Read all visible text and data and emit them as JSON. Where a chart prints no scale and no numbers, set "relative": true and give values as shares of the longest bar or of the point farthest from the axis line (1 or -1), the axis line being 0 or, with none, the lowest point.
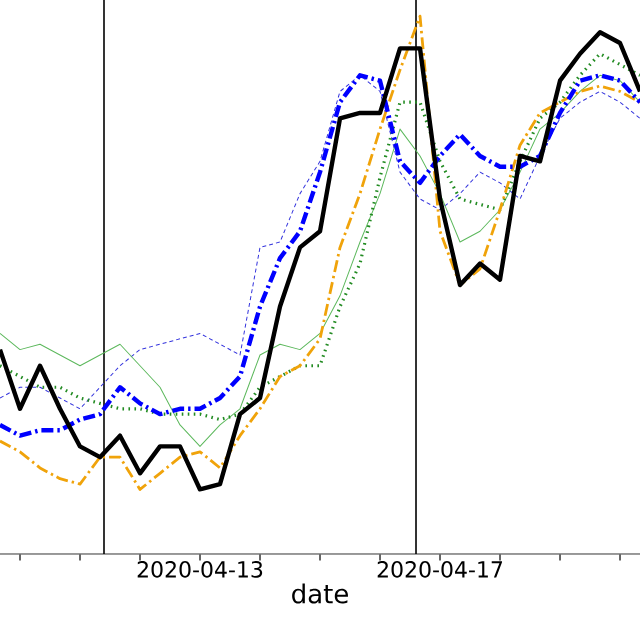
{
  "chart_data": {
    "type": "line",
    "relative": true,
    "xlabel": "date",
    "x": [
      "2020-04-09T16:00",
      "2020-04-10T00:00",
      "2020-04-10T08:00",
      "2020-04-10T16:00",
      "2020-04-11T00:00",
      "2020-04-11T08:00",
      "2020-04-11T16:00",
      "2020-04-12T00:00",
      "2020-04-12T08:00",
      "2020-04-12T16:00",
      "2020-04-13T00:00",
      "2020-04-13T08:00",
      "2020-04-13T16:00",
      "2020-04-14T00:00",
      "2020-04-14T08:00",
      "2020-04-14T16:00",
      "2020-04-15T00:00",
      "2020-04-15T08:00",
      "2020-04-15T16:00",
      "2020-04-16T00:00",
      "2020-04-16T08:00",
      "2020-04-16T16:00",
      "2020-04-17T00:00",
      "2020-04-17T08:00",
      "2020-04-17T16:00",
      "2020-04-18T00:00",
      "2020-04-18T08:00",
      "2020-04-18T16:00",
      "2020-04-19T00:00",
      "2020-04-19T08:00",
      "2020-04-19T16:00",
      "2020-04-20T00:00",
      "2020-04-20T08:00"
    ],
    "xlim": [
      "2020-04-09T16:00",
      "2020-04-20T08:00"
    ],
    "xticks": [
      {
        "value": "2020-04-10",
        "label": null
      },
      {
        "value": "2020-04-11",
        "label": null
      },
      {
        "value": "2020-04-12",
        "label": null
      },
      "2020-04-13",
      {
        "value": "2020-04-14",
        "label": null
      },
      {
        "value": "2020-04-15",
        "label": null
      },
      {
        "value": "2020-04-16",
        "label": null
      },
      "2020-04-17",
      {
        "value": "2020-04-18",
        "label": null
      },
      {
        "value": "2020-04-19",
        "label": null
      },
      {
        "value": "2020-04-20",
        "label": null
      }
    ],
    "series": [
      {
        "color": "#3333dd",
        "line_style": "dashed",
        "values": [
          0.29,
          0.31,
          0.31,
          0.29,
          0.27,
          0.31,
          0.35,
          0.38,
          0.39,
          0.4,
          0.41,
          0.39,
          0.37,
          0.57,
          0.58,
          0.67,
          0.73,
          0.86,
          0.89,
          0.86,
          0.71,
          0.66,
          0.64,
          0.67,
          0.71,
          0.69,
          0.66,
          0.74,
          0.81,
          0.84,
          0.86,
          0.84,
          0.81
        ]
      },
      {
        "color": "#5cb85c",
        "line_style": "solid",
        "values": [
          0.41,
          0.38,
          0.39,
          0.37,
          0.35,
          0.37,
          0.39,
          0.35,
          0.31,
          0.24,
          0.2,
          0.24,
          0.27,
          0.37,
          0.39,
          0.38,
          0.41,
          0.48,
          0.58,
          0.67,
          0.79,
          0.74,
          0.67,
          0.58,
          0.6,
          0.64,
          0.71,
          0.79,
          0.82,
          0.86,
          0.89,
          0.88,
          0.84
        ]
      },
      {
        "color": "#228b22",
        "line_style": "dotted",
        "values": [
          0.35,
          0.33,
          0.31,
          0.31,
          0.29,
          0.28,
          0.27,
          0.27,
          0.26,
          0.26,
          0.26,
          0.25,
          0.26,
          0.31,
          0.33,
          0.35,
          0.35,
          0.46,
          0.54,
          0.7,
          0.84,
          0.84,
          0.73,
          0.66,
          0.65,
          0.64,
          0.73,
          0.81,
          0.84,
          0.89,
          0.93,
          0.91,
          0.89
        ]
      },
      {
        "color": "#f0a30a",
        "line_style": "dashdot",
        "values": [
          0.21,
          0.19,
          0.16,
          0.14,
          0.13,
          0.18,
          0.18,
          0.12,
          0.15,
          0.18,
          0.19,
          0.16,
          0.22,
          0.27,
          0.33,
          0.35,
          0.4,
          0.57,
          0.67,
          0.79,
          0.9,
          1.0,
          0.6,
          0.5,
          0.53,
          0.64,
          0.76,
          0.82,
          0.84,
          0.86,
          0.87,
          0.86,
          0.84
        ]
      },
      {
        "color": "#0000ff",
        "line_style": "dashdot",
        "values": [
          0.24,
          0.22,
          0.23,
          0.23,
          0.25,
          0.26,
          0.31,
          0.28,
          0.26,
          0.27,
          0.27,
          0.29,
          0.33,
          0.46,
          0.55,
          0.6,
          0.71,
          0.84,
          0.89,
          0.88,
          0.73,
          0.69,
          0.74,
          0.78,
          0.74,
          0.72,
          0.72,
          0.74,
          0.82,
          0.88,
          0.89,
          0.88,
          0.84
        ]
      },
      {
        "color": "#000000",
        "line_style": "solid",
        "values": [
          0.38,
          0.27,
          0.35,
          0.27,
          0.2,
          0.18,
          0.22,
          0.15,
          0.2,
          0.2,
          0.12,
          0.13,
          0.26,
          0.29,
          0.46,
          0.57,
          0.6,
          0.81,
          0.82,
          0.82,
          0.94,
          0.94,
          0.66,
          0.5,
          0.54,
          0.51,
          0.74,
          0.73,
          0.88,
          0.93,
          0.97,
          0.95,
          0.86
        ]
      }
    ],
    "ref_lines": [
      {
        "axis": "x",
        "value": "2020-04-11T09:36",
        "color": "#000000"
      },
      {
        "axis": "x",
        "value": "2020-04-16T14:24",
        "color": "#000000"
      }
    ]
  }
}
